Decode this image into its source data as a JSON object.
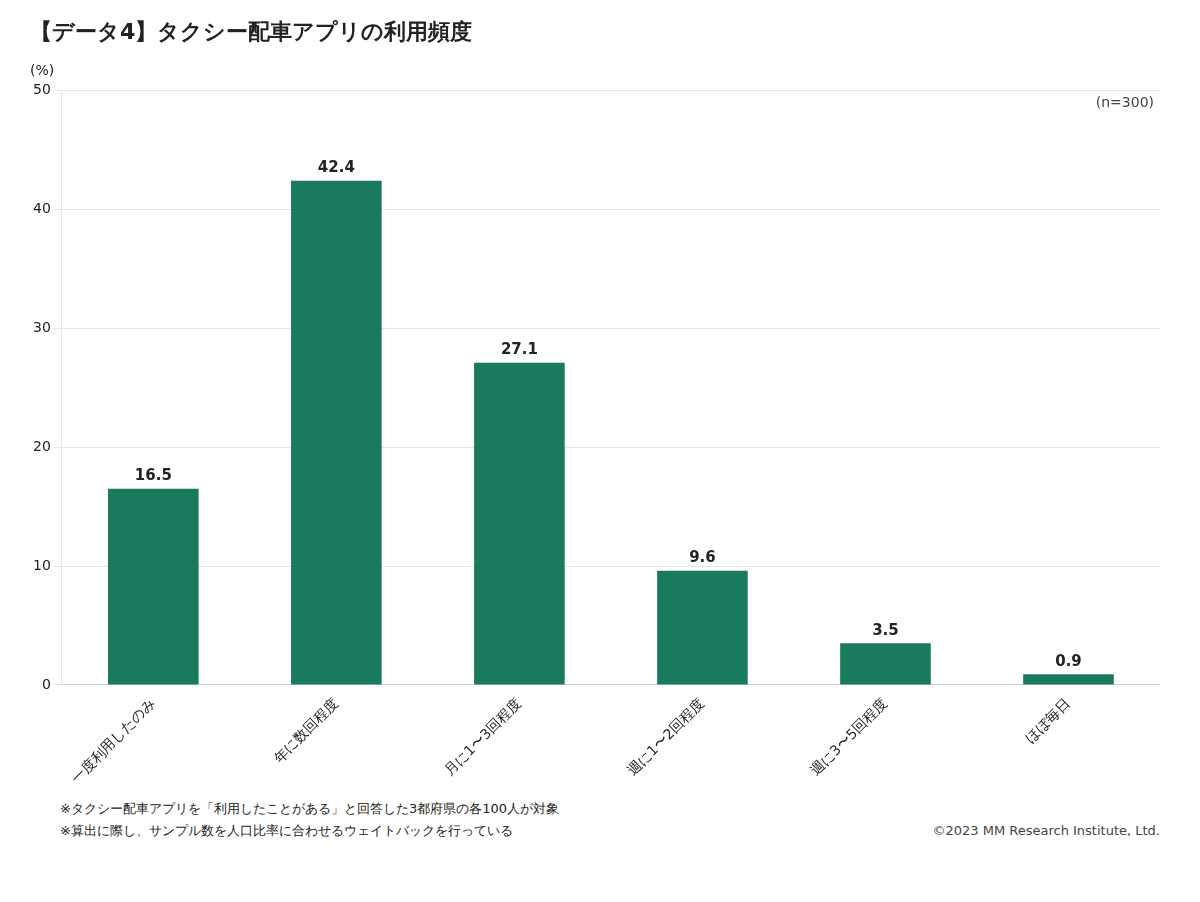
{
  "chart_data": {
    "type": "bar",
    "title": "【データ4】タクシー配車アプリの利用頻度",
    "categories": [
      "一度利用したのみ",
      "年に数回程度",
      "月に1〜3回程度",
      "週に1〜2回程度",
      "週に3〜5回程度",
      "ほぼ毎日"
    ],
    "values": [
      16.5,
      42.4,
      27.1,
      9.6,
      3.5,
      0.9
    ],
    "color": "#1a7a5e",
    "ylabel": "(%)",
    "ylim": [
      0,
      50
    ],
    "yticks": [
      0,
      10,
      20,
      30,
      40,
      50
    ],
    "grid": true,
    "data_labels": true,
    "annotations": [
      "(n=300)",
      "※タクシー配車アプリを「利用したことがある」と回答した3都府県の各100人が対象",
      "※算出に際し、サンプル数を人口比率に合わせるウェイトバックを行っている",
      "©2023 MM Research Institute, Ltd."
    ]
  }
}
